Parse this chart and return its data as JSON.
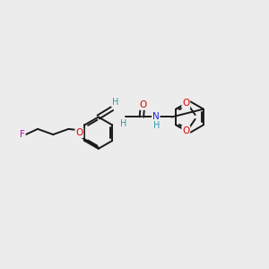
{
  "background_color": "#ececec",
  "bond_color": "#1a1a1a",
  "figsize": [
    3.0,
    3.0
  ],
  "dpi": 100,
  "atom_colors": {
    "O": "#e00000",
    "N": "#2020e0",
    "F": "#cc00cc",
    "H": "#3399aa",
    "C": "#1a1a1a"
  },
  "xlim": [
    0,
    12
  ],
  "ylim": [
    0,
    12
  ]
}
